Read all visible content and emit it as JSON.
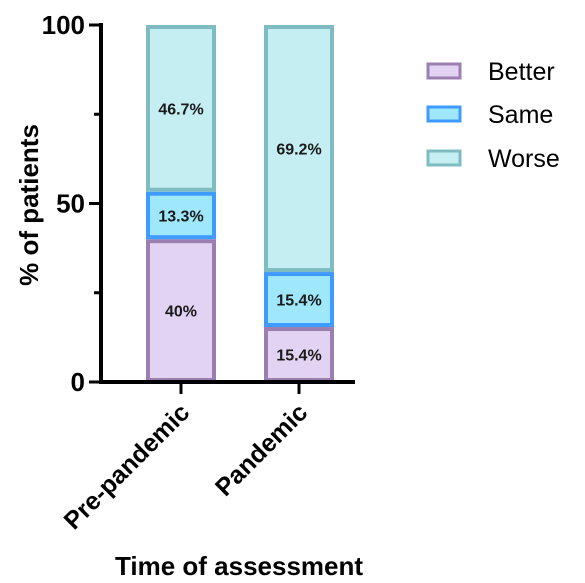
{
  "chart_data": {
    "type": "bar",
    "stacked": true,
    "categories": [
      "Pre-pandemic",
      "Pandemic"
    ],
    "series": [
      {
        "name": "Better",
        "values": [
          40,
          15.4
        ],
        "labels": [
          "40%",
          "15.4%"
        ],
        "fill": "#e2d3f2",
        "stroke": "#9b7fb0"
      },
      {
        "name": "Same",
        "values": [
          13.3,
          15.4
        ],
        "labels": [
          "13.3%",
          "15.4%"
        ],
        "fill": "#9fe8fb",
        "stroke": "#3f9bff"
      },
      {
        "name": "Worse",
        "values": [
          46.7,
          69.2
        ],
        "labels": [
          "46.7%",
          "69.2%"
        ],
        "fill": "#c5eef2",
        "stroke": "#7fbcc2"
      }
    ],
    "xlabel": "Time of assessment",
    "ylabel": "% of patients",
    "ylim": [
      0,
      100
    ],
    "yticks": [
      "0",
      "50",
      "100"
    ],
    "legend_position": "top-right",
    "grid": false
  }
}
